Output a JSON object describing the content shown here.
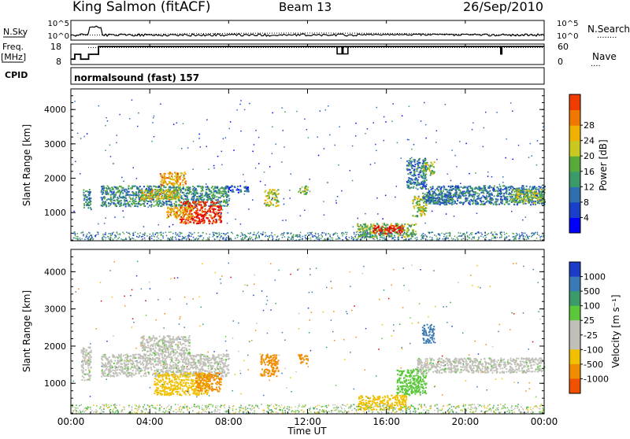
{
  "header": {
    "station": "King Salmon (fitACF)",
    "beam": "Beam 13",
    "date": "26/Sep/2010"
  },
  "side_labels": {
    "nsky": "N.Sky",
    "freq": "Freq.",
    "mhz": "[MHz]",
    "cpid": "CPID",
    "nsearch": "N.Search",
    "nave": "Nave",
    "nsearch_dots": "........",
    "nave_dots": "...."
  },
  "cpid_text": "normalsound (fast) 157",
  "noise_axis": {
    "left_ticks": [
      "10^5",
      "10^0"
    ],
    "right_ticks": [
      "10^5",
      "10^0"
    ]
  },
  "freq_axis": {
    "left_ticks": [
      18,
      8
    ],
    "right_ticks": [
      60,
      0
    ],
    "ylim": [
      8,
      18
    ],
    "nave_lim": [
      0,
      60
    ]
  },
  "freq_trace": {
    "times": [
      0.0,
      0.2,
      0.2,
      0.5,
      0.5,
      0.9,
      0.9,
      1.4,
      1.4,
      21.8,
      21.8,
      21.85,
      21.85,
      24.0
    ],
    "mhz": [
      10.6,
      10.6,
      13.0,
      13.0,
      10.6,
      10.6,
      13.0,
      13.0,
      16.8,
      16.8,
      13.2,
      13.2,
      16.8,
      16.8
    ]
  },
  "freq_dips": [
    [
      13.5,
      13.75
    ],
    [
      13.8,
      14.05
    ],
    [
      21.8,
      21.85
    ]
  ],
  "xaxis": {
    "label": "Time UT",
    "ticks": [
      "00:00",
      "04:00",
      "08:00",
      "12:00",
      "16:00",
      "20:00",
      "00:00"
    ],
    "range_hours": [
      0,
      24
    ]
  },
  "power_panel": {
    "ylabel": "Slant Range [km]",
    "yticks": [
      1000,
      2000,
      3000,
      4000
    ],
    "ylim": [
      180,
      4600
    ],
    "colorbar_title": "Power [dB]",
    "colorbar_labels": [
      4,
      8,
      12,
      16,
      20,
      24,
      28
    ],
    "colorbar_colors": [
      "#0000ff",
      "#1a3fc8",
      "#2f6fb0",
      "#3a9a6a",
      "#5aaa3a",
      "#c8c820",
      "#f0b000",
      "#f07800",
      "#f03c00",
      "#e00000"
    ]
  },
  "velocity_panel": {
    "ylabel": "Slant Range [km]",
    "yticks": [
      1000,
      2000,
      3000,
      4000
    ],
    "ylim": [
      180,
      4600
    ],
    "colorbar_title": "Velocity [m s⁻¹]",
    "colorbar_labels": [
      1000,
      500,
      100,
      25,
      -25,
      -100,
      -500,
      -1000
    ],
    "colorbar_colors": [
      "#1a3cc8",
      "#3a7ab4",
      "#3a9a6a",
      "#5ac83a",
      "#c0c0b8",
      "#c0c0b8",
      "#f0c000",
      "#f08c00",
      "#f05000",
      "#e00000"
    ]
  },
  "chart_data": {
    "type": "heatmap",
    "title": "King Salmon (fitACF) Beam 13 26/Sep/2010",
    "xlabel": "Time UT",
    "ylabel": "Slant Range [km]",
    "x_range_hours": [
      0,
      24
    ],
    "y_range_km": [
      180,
      4600
    ],
    "power_regions": [
      {
        "t0": 1.5,
        "t1": 8.0,
        "r0": 1200,
        "r1": 1800,
        "db": 10
      },
      {
        "t0": 3.5,
        "t1": 5.5,
        "r0": 1400,
        "r1": 1700,
        "db": 18
      },
      {
        "t0": 4.5,
        "t1": 5.8,
        "r0": 1800,
        "r1": 2200,
        "db": 20
      },
      {
        "t0": 5.5,
        "t1": 7.6,
        "r0": 700,
        "r1": 1350,
        "db": 27
      },
      {
        "t0": 4.8,
        "t1": 6.2,
        "r0": 850,
        "r1": 1200,
        "db": 20
      },
      {
        "t0": 9.8,
        "t1": 10.5,
        "r0": 1200,
        "r1": 1700,
        "db": 16
      },
      {
        "t0": 7.8,
        "t1": 9.0,
        "r0": 1600,
        "r1": 1800,
        "db": 6
      },
      {
        "t0": 11.5,
        "t1": 12.0,
        "r0": 1550,
        "r1": 1800,
        "db": 14
      },
      {
        "t0": 14.5,
        "t1": 17.5,
        "r0": 300,
        "r1": 700,
        "db": 14
      },
      {
        "t0": 15.3,
        "t1": 16.8,
        "r0": 400,
        "r1": 650,
        "db": 28
      },
      {
        "t0": 17.3,
        "t1": 18.0,
        "r0": 900,
        "r1": 1500,
        "db": 16
      },
      {
        "t0": 17.0,
        "t1": 18.0,
        "r0": 1700,
        "r1": 2600,
        "db": 8
      },
      {
        "t0": 17.8,
        "t1": 19.5,
        "r0": 1300,
        "r1": 1600,
        "db": 8
      },
      {
        "t0": 18.0,
        "t1": 24.0,
        "r0": 1250,
        "r1": 1800,
        "db": 8
      },
      {
        "t0": 22.3,
        "t1": 24.0,
        "r0": 1300,
        "r1": 1700,
        "db": 14
      },
      {
        "t0": 0.6,
        "t1": 1.0,
        "r0": 1100,
        "r1": 1700,
        "db": 10
      },
      {
        "t0": 17.8,
        "t1": 18.4,
        "r0": 2100,
        "r1": 2500,
        "db": 14
      }
    ],
    "velocity_regions": [
      {
        "t0": 1.5,
        "t1": 8.0,
        "r0": 1200,
        "r1": 1800,
        "v": 0
      },
      {
        "t0": 3.5,
        "t1": 6.0,
        "r0": 1800,
        "r1": 2300,
        "v": 0
      },
      {
        "t0": 4.2,
        "t1": 7.0,
        "r0": 700,
        "r1": 1300,
        "v": -200
      },
      {
        "t0": 6.3,
        "t1": 7.6,
        "r0": 800,
        "r1": 1300,
        "v": -800
      },
      {
        "t0": 9.6,
        "t1": 10.5,
        "r0": 1200,
        "r1": 1800,
        "v": -700
      },
      {
        "t0": 11.5,
        "t1": 12.0,
        "r0": 1550,
        "r1": 1800,
        "v": -900
      },
      {
        "t0": 14.5,
        "t1": 17.0,
        "r0": 300,
        "r1": 700,
        "v": -150
      },
      {
        "t0": 16.5,
        "t1": 18.0,
        "r0": 700,
        "r1": 1400,
        "v": 60
      },
      {
        "t0": 17.5,
        "t1": 24.0,
        "r0": 1300,
        "r1": 1700,
        "v": 0
      },
      {
        "t0": 0.5,
        "t1": 1.0,
        "r0": 1100,
        "r1": 2000,
        "v": 0
      },
      {
        "t0": 17.8,
        "t1": 18.4,
        "r0": 2100,
        "r1": 2600,
        "v": 700
      }
    ],
    "scatter_seed": 17
  }
}
